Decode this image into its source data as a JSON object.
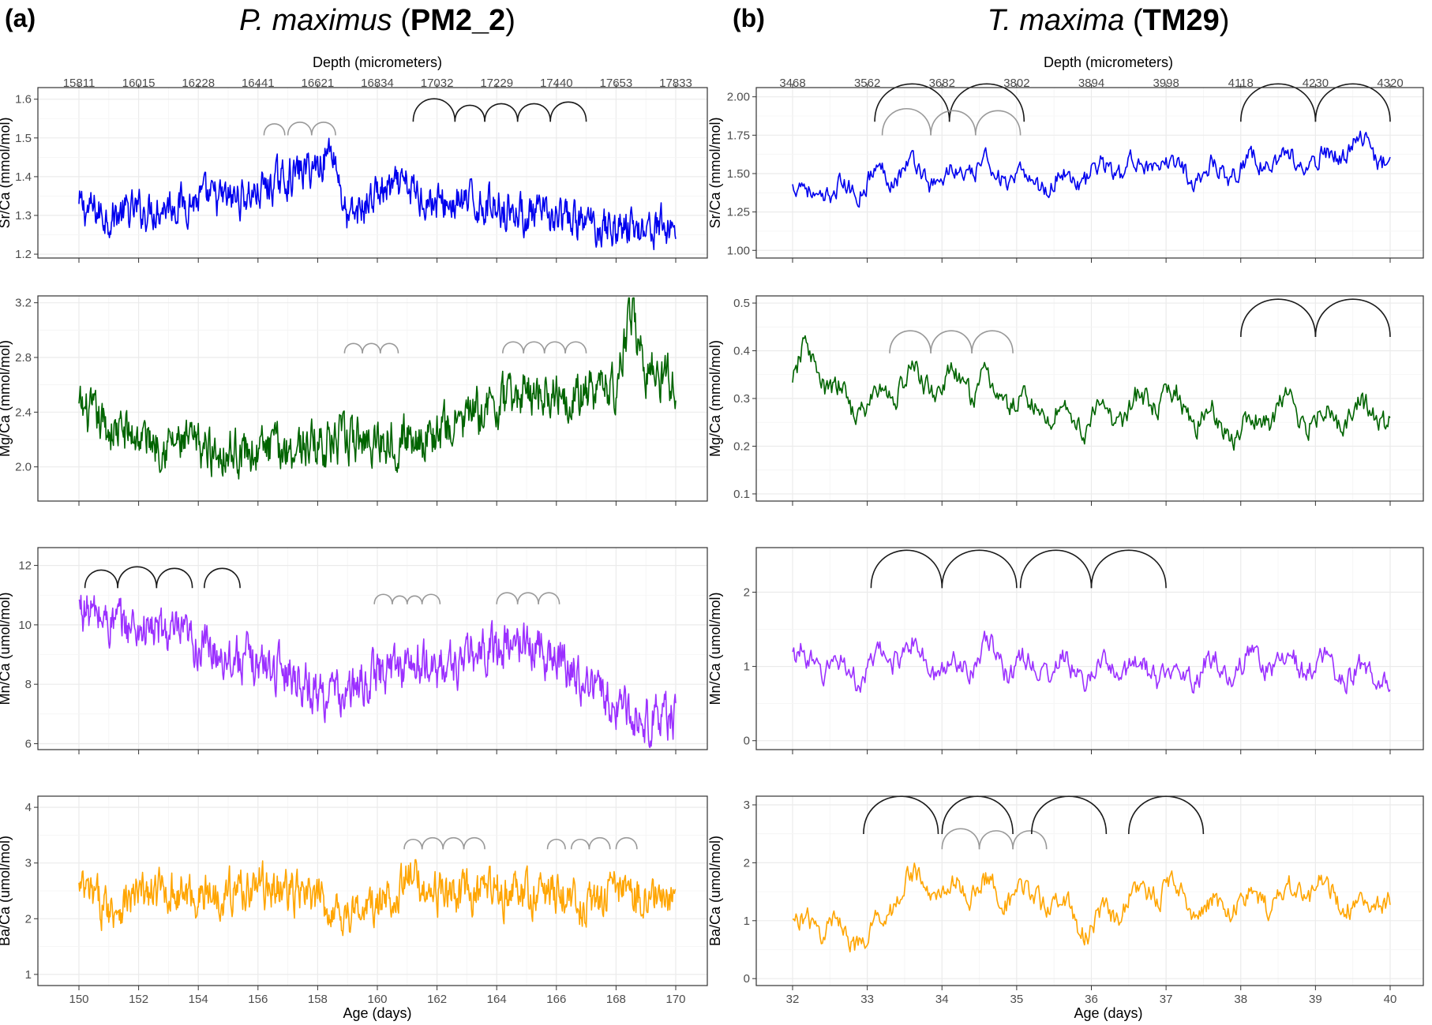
{
  "panels": [
    {
      "letter": "(a)",
      "species": "P. maximus",
      "specimen": "PM2_2",
      "depth_axis": {
        "title": "Depth (micrometers)",
        "ticks": [
          "15811",
          "16015",
          "16228",
          "16441",
          "16621",
          "16834",
          "17032",
          "17229",
          "17440",
          "17653",
          "17833"
        ]
      },
      "x_axis": {
        "title": "Age (days)",
        "range": [
          150,
          170
        ],
        "ticks": [
          150,
          152,
          154,
          156,
          158,
          160,
          162,
          164,
          166,
          168,
          170
        ]
      }
    },
    {
      "letter": "(b)",
      "species": "T. maxima",
      "specimen": "TM29",
      "depth_axis": {
        "title": "Depth (micrometers)",
        "ticks": [
          "3468",
          "3562",
          "3682",
          "3802",
          "3894",
          "3998",
          "4118",
          "4230",
          "4320"
        ]
      },
      "x_axis": {
        "title": "Age (days)",
        "range": [
          32,
          40
        ],
        "ticks": [
          32,
          33,
          34,
          35,
          36,
          37,
          38,
          39,
          40
        ]
      }
    }
  ],
  "chart_data": [
    {
      "type": "line",
      "panel": "a",
      "element": "Sr",
      "ylabel": "Sr/Ca (mmol/mol)",
      "ylim": [
        1.19,
        1.63
      ],
      "yticks": [
        1.2,
        1.3,
        1.4,
        1.5,
        1.6
      ],
      "ytick_labels": [
        "1.2",
        "1.3",
        "1.4",
        "1.5",
        "1.6"
      ],
      "xlim": [
        150,
        170
      ],
      "color": "#0000ee",
      "series": [
        {
          "x": [
            150,
            151,
            152,
            153,
            154,
            155,
            156,
            157,
            158,
            158.5,
            159,
            160,
            161,
            162,
            163,
            164,
            165,
            166,
            167,
            168,
            169,
            170
          ],
          "y": [
            1.32,
            1.3,
            1.31,
            1.33,
            1.34,
            1.34,
            1.36,
            1.4,
            1.43,
            1.48,
            1.28,
            1.36,
            1.37,
            1.33,
            1.33,
            1.33,
            1.3,
            1.29,
            1.28,
            1.27,
            1.27,
            1.27
          ]
        }
      ],
      "arcs": [
        {
          "from": 156.2,
          "to": 156.9,
          "gray": true
        },
        {
          "from": 157.0,
          "to": 157.8,
          "gray": true
        },
        {
          "from": 157.8,
          "to": 158.6,
          "gray": true
        },
        {
          "from": 161.2,
          "to": 162.6,
          "gray": false
        },
        {
          "from": 162.6,
          "to": 163.6,
          "gray": false
        },
        {
          "from": 163.6,
          "to": 164.7,
          "gray": false
        },
        {
          "from": 164.7,
          "to": 165.8,
          "gray": false
        },
        {
          "from": 165.8,
          "to": 167.0,
          "gray": false
        }
      ]
    },
    {
      "type": "line",
      "panel": "a",
      "element": "Mg",
      "ylabel": "Mg/Ca (mmol/mol)",
      "ylim": [
        1.75,
        3.25
      ],
      "yticks": [
        2.0,
        2.4,
        2.8,
        3.2
      ],
      "ytick_labels": [
        "2.0",
        "2.4",
        "2.8",
        "3.2"
      ],
      "xlim": [
        150,
        170
      ],
      "color": "#006400",
      "series": [
        {
          "x": [
            150,
            151,
            152,
            153,
            154,
            155,
            156,
            157,
            158,
            159,
            160,
            161,
            162,
            163,
            164,
            165,
            166,
            167,
            168,
            168.5,
            169,
            170
          ],
          "y": [
            2.42,
            2.28,
            2.22,
            2.18,
            2.14,
            2.12,
            2.12,
            2.14,
            2.18,
            2.18,
            2.2,
            2.22,
            2.24,
            2.36,
            2.45,
            2.55,
            2.56,
            2.52,
            2.6,
            3.15,
            2.72,
            2.62
          ]
        }
      ],
      "arcs": [
        {
          "from": 158.9,
          "to": 159.5,
          "gray": true
        },
        {
          "from": 159.5,
          "to": 160.1,
          "gray": true
        },
        {
          "from": 160.1,
          "to": 160.7,
          "gray": true
        },
        {
          "from": 164.2,
          "to": 164.9,
          "gray": true
        },
        {
          "from": 164.9,
          "to": 165.6,
          "gray": true
        },
        {
          "from": 165.6,
          "to": 166.3,
          "gray": true
        },
        {
          "from": 166.3,
          "to": 167.0,
          "gray": true
        }
      ]
    },
    {
      "type": "line",
      "panel": "a",
      "element": "Mn",
      "ylabel": "Mn/Ca (umol/mol)",
      "ylim": [
        5.8,
        12.6
      ],
      "yticks": [
        6,
        8,
        10,
        12
      ],
      "ytick_labels": [
        "6",
        "8",
        "10",
        "12"
      ],
      "xlim": [
        150,
        170
      ],
      "color": "#9b30ff",
      "series": [
        {
          "x": [
            150,
            151,
            152,
            153,
            154,
            155,
            156,
            157,
            158,
            159,
            160,
            161,
            162,
            163,
            164,
            165,
            166,
            167,
            168,
            169,
            170
          ],
          "y": [
            10.6,
            10.1,
            9.9,
            9.7,
            9.3,
            9.0,
            8.7,
            8.5,
            7.7,
            7.6,
            8.4,
            8.7,
            8.5,
            8.8,
            9.3,
            9.4,
            8.9,
            8.1,
            7.3,
            6.8,
            6.9
          ]
        }
      ],
      "arcs": [
        {
          "from": 150.2,
          "to": 151.3,
          "gray": false
        },
        {
          "from": 151.3,
          "to": 152.6,
          "gray": false
        },
        {
          "from": 152.6,
          "to": 153.8,
          "gray": false
        },
        {
          "from": 154.2,
          "to": 155.4,
          "gray": false
        },
        {
          "from": 159.9,
          "to": 160.5,
          "gray": true
        },
        {
          "from": 160.5,
          "to": 161.0,
          "gray": true
        },
        {
          "from": 161.0,
          "to": 161.5,
          "gray": true
        },
        {
          "from": 161.5,
          "to": 162.1,
          "gray": true
        },
        {
          "from": 164.0,
          "to": 164.7,
          "gray": true
        },
        {
          "from": 164.7,
          "to": 165.4,
          "gray": true
        },
        {
          "from": 165.4,
          "to": 166.1,
          "gray": true
        }
      ]
    },
    {
      "type": "line",
      "panel": "a",
      "element": "Ba",
      "ylabel": "Ba/Ca (umol/mol)",
      "ylim": [
        0.8,
        4.2
      ],
      "yticks": [
        1,
        2,
        3,
        4
      ],
      "ytick_labels": [
        "1",
        "2",
        "3",
        "4"
      ],
      "xlim": [
        150,
        170
      ],
      "color": "#ffa500",
      "series": [
        {
          "x": [
            150,
            151,
            152,
            153,
            154,
            155,
            156,
            157,
            158,
            159,
            160,
            161,
            162,
            163,
            164,
            165,
            166,
            167,
            168,
            169,
            170
          ],
          "y": [
            2.5,
            2.2,
            2.4,
            2.5,
            2.4,
            2.5,
            2.6,
            2.5,
            2.3,
            2.1,
            2.2,
            2.7,
            2.5,
            2.4,
            2.5,
            2.4,
            2.5,
            2.2,
            2.5,
            2.4,
            2.3
          ]
        }
      ],
      "arcs": [
        {
          "from": 160.9,
          "to": 161.5,
          "gray": true
        },
        {
          "from": 161.5,
          "to": 162.2,
          "gray": true
        },
        {
          "from": 162.2,
          "to": 162.9,
          "gray": true
        },
        {
          "from": 162.9,
          "to": 163.6,
          "gray": true
        },
        {
          "from": 165.7,
          "to": 166.3,
          "gray": true
        },
        {
          "from": 166.5,
          "to": 167.1,
          "gray": true
        },
        {
          "from": 167.1,
          "to": 167.8,
          "gray": true
        },
        {
          "from": 168.0,
          "to": 168.7,
          "gray": true
        }
      ]
    },
    {
      "type": "line",
      "panel": "b",
      "element": "Sr",
      "ylabel": "Sr/Ca (mmol/mol)",
      "ylim": [
        0.95,
        2.06
      ],
      "yticks": [
        1.0,
        1.25,
        1.5,
        1.75,
        2.0
      ],
      "ytick_labels": [
        "1.00",
        "1.25",
        "1.50",
        "1.75",
        "2.00"
      ],
      "xlim": [
        32,
        40
      ],
      "color": "#0000ee",
      "series": [
        {
          "x": [
            32,
            32.5,
            33,
            33.5,
            34,
            34.5,
            35,
            35.5,
            36,
            36.5,
            37,
            37.5,
            38,
            38.5,
            39,
            39.5,
            40
          ],
          "y": [
            1.4,
            1.35,
            1.45,
            1.55,
            1.45,
            1.55,
            1.45,
            1.45,
            1.5,
            1.55,
            1.55,
            1.5,
            1.55,
            1.6,
            1.55,
            1.7,
            1.6
          ]
        }
      ],
      "arcs": [
        {
          "from": 33.1,
          "to": 34.1,
          "gray": false
        },
        {
          "from": 34.1,
          "to": 35.1,
          "gray": false
        },
        {
          "from": 33.2,
          "to": 33.85,
          "gray": true
        },
        {
          "from": 33.85,
          "to": 34.45,
          "gray": true
        },
        {
          "from": 34.45,
          "to": 35.05,
          "gray": true
        },
        {
          "from": 38.0,
          "to": 39.0,
          "gray": false
        },
        {
          "from": 39.0,
          "to": 40.0,
          "gray": false
        }
      ]
    },
    {
      "type": "line",
      "panel": "b",
      "element": "Mg",
      "ylabel": "Mg/Ca (mmol/mol)",
      "ylim": [
        0.085,
        0.515
      ],
      "yticks": [
        0.1,
        0.2,
        0.3,
        0.4,
        0.5
      ],
      "ytick_labels": [
        "0.1",
        "0.2",
        "0.3",
        "0.4",
        "0.5"
      ],
      "xlim": [
        32,
        40
      ],
      "color": "#006400",
      "series": [
        {
          "x": [
            32,
            32.2,
            32.5,
            33,
            33.5,
            34,
            34.5,
            35,
            35.5,
            36,
            36.5,
            37,
            37.5,
            38,
            38.5,
            39,
            39.5,
            40
          ],
          "y": [
            0.32,
            0.41,
            0.31,
            0.28,
            0.34,
            0.33,
            0.33,
            0.29,
            0.27,
            0.25,
            0.28,
            0.3,
            0.26,
            0.23,
            0.28,
            0.26,
            0.27,
            0.26
          ]
        }
      ],
      "arcs": [
        {
          "from": 33.3,
          "to": 33.85,
          "gray": true
        },
        {
          "from": 33.85,
          "to": 34.4,
          "gray": true
        },
        {
          "from": 34.4,
          "to": 34.95,
          "gray": true
        },
        {
          "from": 38.0,
          "to": 39.0,
          "gray": false
        },
        {
          "from": 39.0,
          "to": 40.0,
          "gray": false
        }
      ]
    },
    {
      "type": "line",
      "panel": "b",
      "element": "Mn",
      "ylabel": "Mn/Ca (umol/mol)",
      "ylim": [
        -0.12,
        2.6
      ],
      "yticks": [
        0,
        1,
        2
      ],
      "ytick_labels": [
        "0",
        "1",
        "2"
      ],
      "xlim": [
        32,
        40
      ],
      "color": "#9b30ff",
      "series": [
        {
          "x": [
            32,
            32.5,
            33,
            33.5,
            34,
            34.5,
            35,
            35.5,
            36,
            36.5,
            37,
            37.5,
            38,
            38.5,
            39,
            39.5,
            40
          ],
          "y": [
            1.1,
            1.0,
            0.9,
            1.3,
            0.9,
            1.2,
            1.0,
            1.0,
            0.9,
            1.0,
            0.9,
            1.0,
            1.0,
            1.1,
            1.0,
            0.9,
            0.85
          ]
        }
      ],
      "arcs": [
        {
          "from": 33.05,
          "to": 34.0,
          "gray": false
        },
        {
          "from": 34.0,
          "to": 35.0,
          "gray": false
        },
        {
          "from": 35.05,
          "to": 36.0,
          "gray": false
        },
        {
          "from": 36.0,
          "to": 37.0,
          "gray": false
        }
      ]
    },
    {
      "type": "line",
      "panel": "b",
      "element": "Ba",
      "ylabel": "Ba/Ca (umol/mol)",
      "ylim": [
        -0.12,
        3.15
      ],
      "yticks": [
        0,
        1,
        2,
        3
      ],
      "ytick_labels": [
        "0",
        "1",
        "2",
        "3"
      ],
      "xlim": [
        32,
        40
      ],
      "color": "#ffa500",
      "series": [
        {
          "x": [
            32,
            32.5,
            33,
            33.5,
            34,
            34.5,
            35,
            35.5,
            36,
            36.5,
            37,
            37.5,
            38,
            38.5,
            39,
            39.5,
            40
          ],
          "y": [
            0.9,
            0.95,
            0.6,
            1.7,
            1.5,
            1.6,
            1.4,
            1.4,
            0.8,
            1.4,
            1.6,
            1.2,
            1.3,
            1.4,
            1.6,
            1.3,
            1.4
          ]
        }
      ],
      "arcs": [
        {
          "from": 32.95,
          "to": 33.95,
          "gray": false
        },
        {
          "from": 34.0,
          "to": 34.95,
          "gray": false
        },
        {
          "from": 34.0,
          "to": 34.5,
          "gray": true
        },
        {
          "from": 34.5,
          "to": 34.95,
          "gray": true
        },
        {
          "from": 34.95,
          "to": 35.4,
          "gray": true
        },
        {
          "from": 35.2,
          "to": 36.2,
          "gray": false
        },
        {
          "from": 36.5,
          "to": 37.5,
          "gray": false
        }
      ]
    }
  ]
}
